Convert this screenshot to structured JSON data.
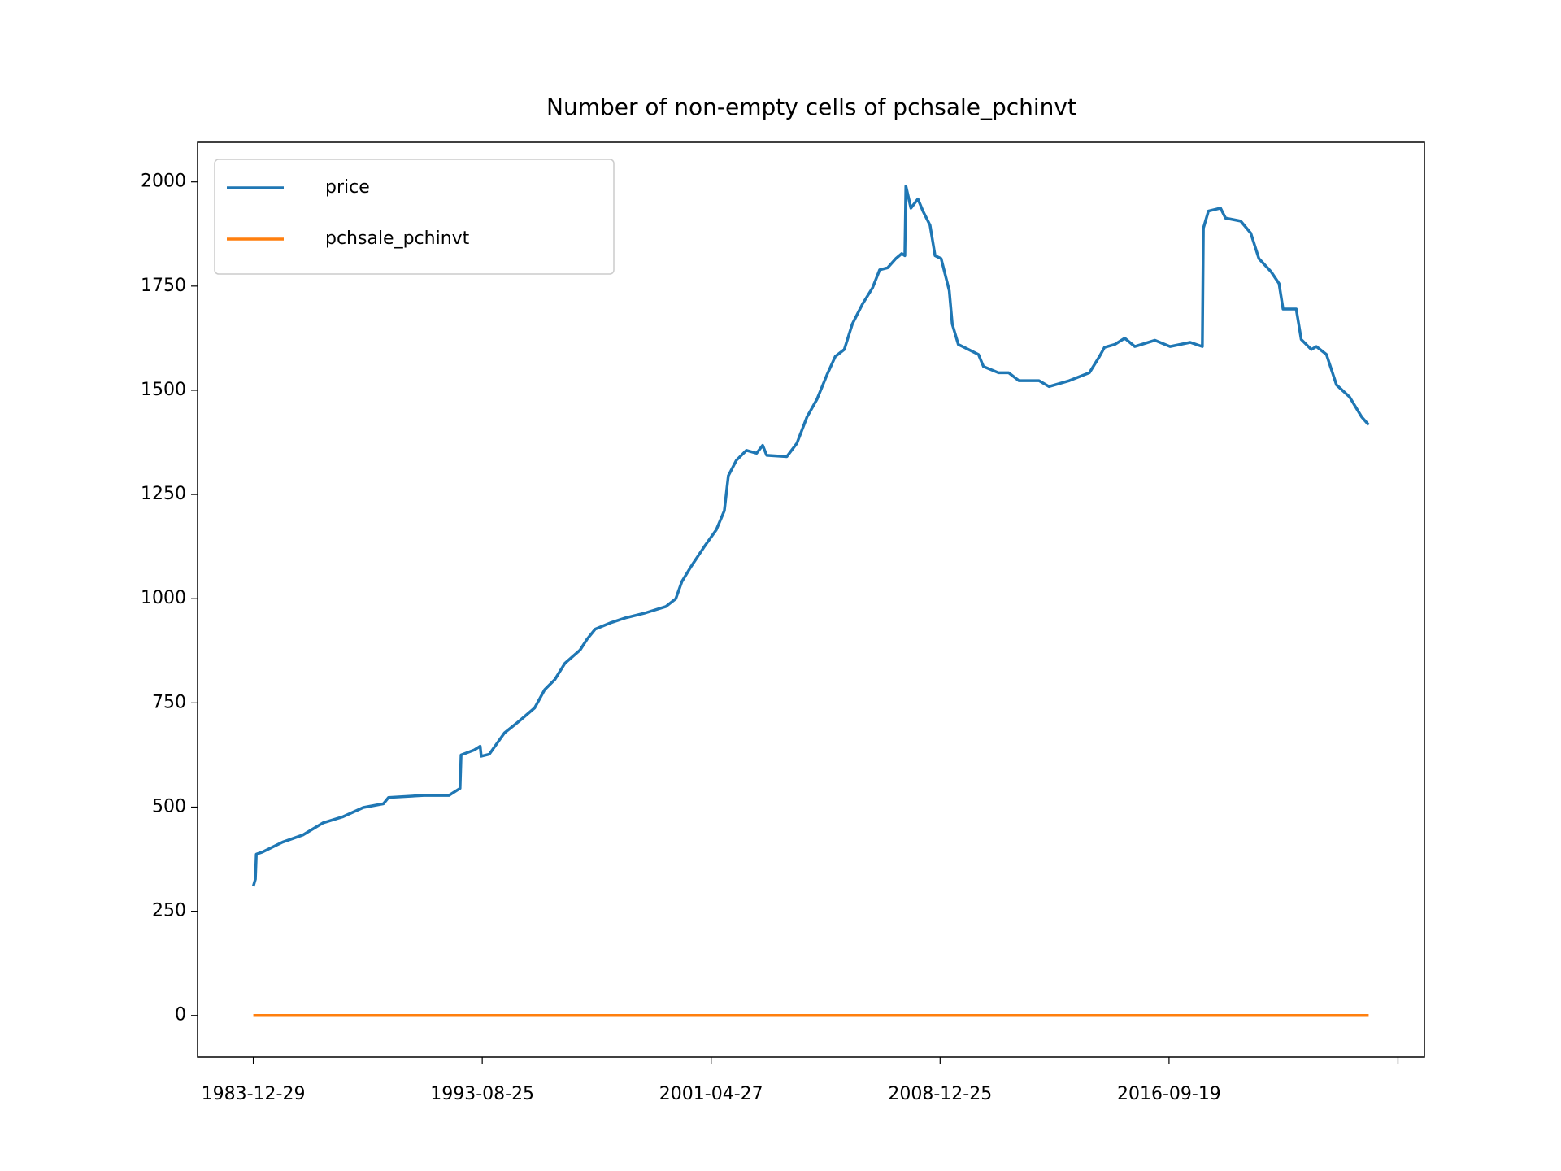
{
  "chart_data": {
    "type": "line",
    "title": "Number of non-empty cells of pchsale_pchinvt",
    "x": [
      0,
      18,
      26,
      79,
      256,
      432,
      608,
      784,
      961,
      1137,
      1181,
      1489,
      1709,
      1806,
      1815,
      1930,
      1982,
      1991,
      2062,
      2194,
      2326,
      2458,
      2546,
      2634,
      2722,
      2855,
      2916,
      2987,
      3119,
      3251,
      3427,
      3603,
      3691,
      3744,
      3824,
      3938,
      4044,
      4115,
      4150,
      4220,
      4308,
      4397,
      4450,
      4485,
      4661,
      4749,
      4837,
      4925,
      5013,
      5084,
      5163,
      5233,
      5322,
      5410,
      5472,
      5542,
      5613,
      5665,
      5692,
      5701,
      5745,
      5806,
      5850,
      5912,
      5956,
      6009,
      6080,
      6106,
      6159,
      6247,
      6335,
      6379,
      6511,
      6599,
      6688,
      6864,
      6952,
      7128,
      7304,
      7392,
      7436,
      7525,
      7613,
      7701,
      7877,
      8009,
      8185,
      8291,
      8300,
      8344,
      8450,
      8494,
      8626,
      8714,
      8785,
      8890,
      8961,
      8996,
      9111,
      9155,
      9243,
      9287,
      9375,
      9463,
      9577,
      9683,
      9744
    ],
    "series": [
      {
        "name": "price",
        "color": "#1f77b4",
        "values": [
          310,
          327,
          387,
          392,
          416,
          433,
          462,
          477,
          499,
          508,
          523,
          528,
          528,
          545,
          625,
          637,
          646,
          622,
          627,
          678,
          707,
          738,
          782,
          806,
          845,
          877,
          903,
          927,
          942,
          954,
          966,
          981,
          1000,
          1041,
          1077,
          1124,
          1165,
          1211,
          1295,
          1332,
          1356,
          1349,
          1368,
          1344,
          1341,
          1373,
          1436,
          1479,
          1538,
          1581,
          1598,
          1659,
          1707,
          1746,
          1789,
          1794,
          1816,
          1828,
          1823,
          1990,
          1937,
          1959,
          1930,
          1896,
          1823,
          1816,
          1739,
          1659,
          1610,
          1598,
          1586,
          1557,
          1542,
          1542,
          1523,
          1523,
          1509,
          1523,
          1542,
          1581,
          1603,
          1610,
          1625,
          1605,
          1620,
          1605,
          1615,
          1605,
          1889,
          1930,
          1937,
          1913,
          1906,
          1877,
          1816,
          1785,
          1756,
          1695,
          1695,
          1622,
          1598,
          1605,
          1586,
          1513,
          1484,
          1436,
          1417
        ]
      },
      {
        "name": "pchsale_pchinvt",
        "color": "#ff7f0e",
        "values": [
          0,
          0,
          0,
          0,
          0,
          0,
          0,
          0,
          0,
          0,
          0,
          0,
          0,
          0,
          0,
          0,
          0,
          0,
          0,
          0,
          0,
          0,
          0,
          0,
          0,
          0,
          0,
          0,
          0,
          0,
          0,
          0,
          0,
          0,
          0,
          0,
          0,
          0,
          0,
          0,
          0,
          0,
          0,
          0,
          0,
          0,
          0,
          0,
          0,
          0,
          0,
          0,
          0,
          0,
          0,
          0,
          0,
          0,
          0,
          0,
          0,
          0,
          0,
          0,
          0,
          0,
          0,
          0,
          0,
          0,
          0,
          0,
          0,
          0,
          0,
          0,
          0,
          0,
          0,
          0,
          0,
          0,
          0,
          0,
          0,
          0,
          0,
          0,
          0,
          0,
          0,
          0,
          0,
          0,
          0,
          0,
          0,
          0,
          0,
          0,
          0,
          0,
          0,
          0,
          0,
          0,
          0
        ]
      }
    ],
    "xlim": [
      -487,
      10231
    ],
    "ylim": [
      -100,
      2095
    ],
    "xticks": [
      {
        "value": 0,
        "label": "1983-12-29"
      },
      {
        "value": 2000,
        "label": "1993-08-25"
      },
      {
        "value": 4000,
        "label": "2001-04-27"
      },
      {
        "value": 6000,
        "label": "2008-12-25"
      },
      {
        "value": 8000,
        "label": "2016-09-19"
      },
      {
        "value": 10000,
        "label": null
      }
    ],
    "yticks": [
      0,
      250,
      500,
      750,
      1000,
      1250,
      1500,
      1750,
      2000
    ],
    "grid": false,
    "legend": "upper left"
  }
}
